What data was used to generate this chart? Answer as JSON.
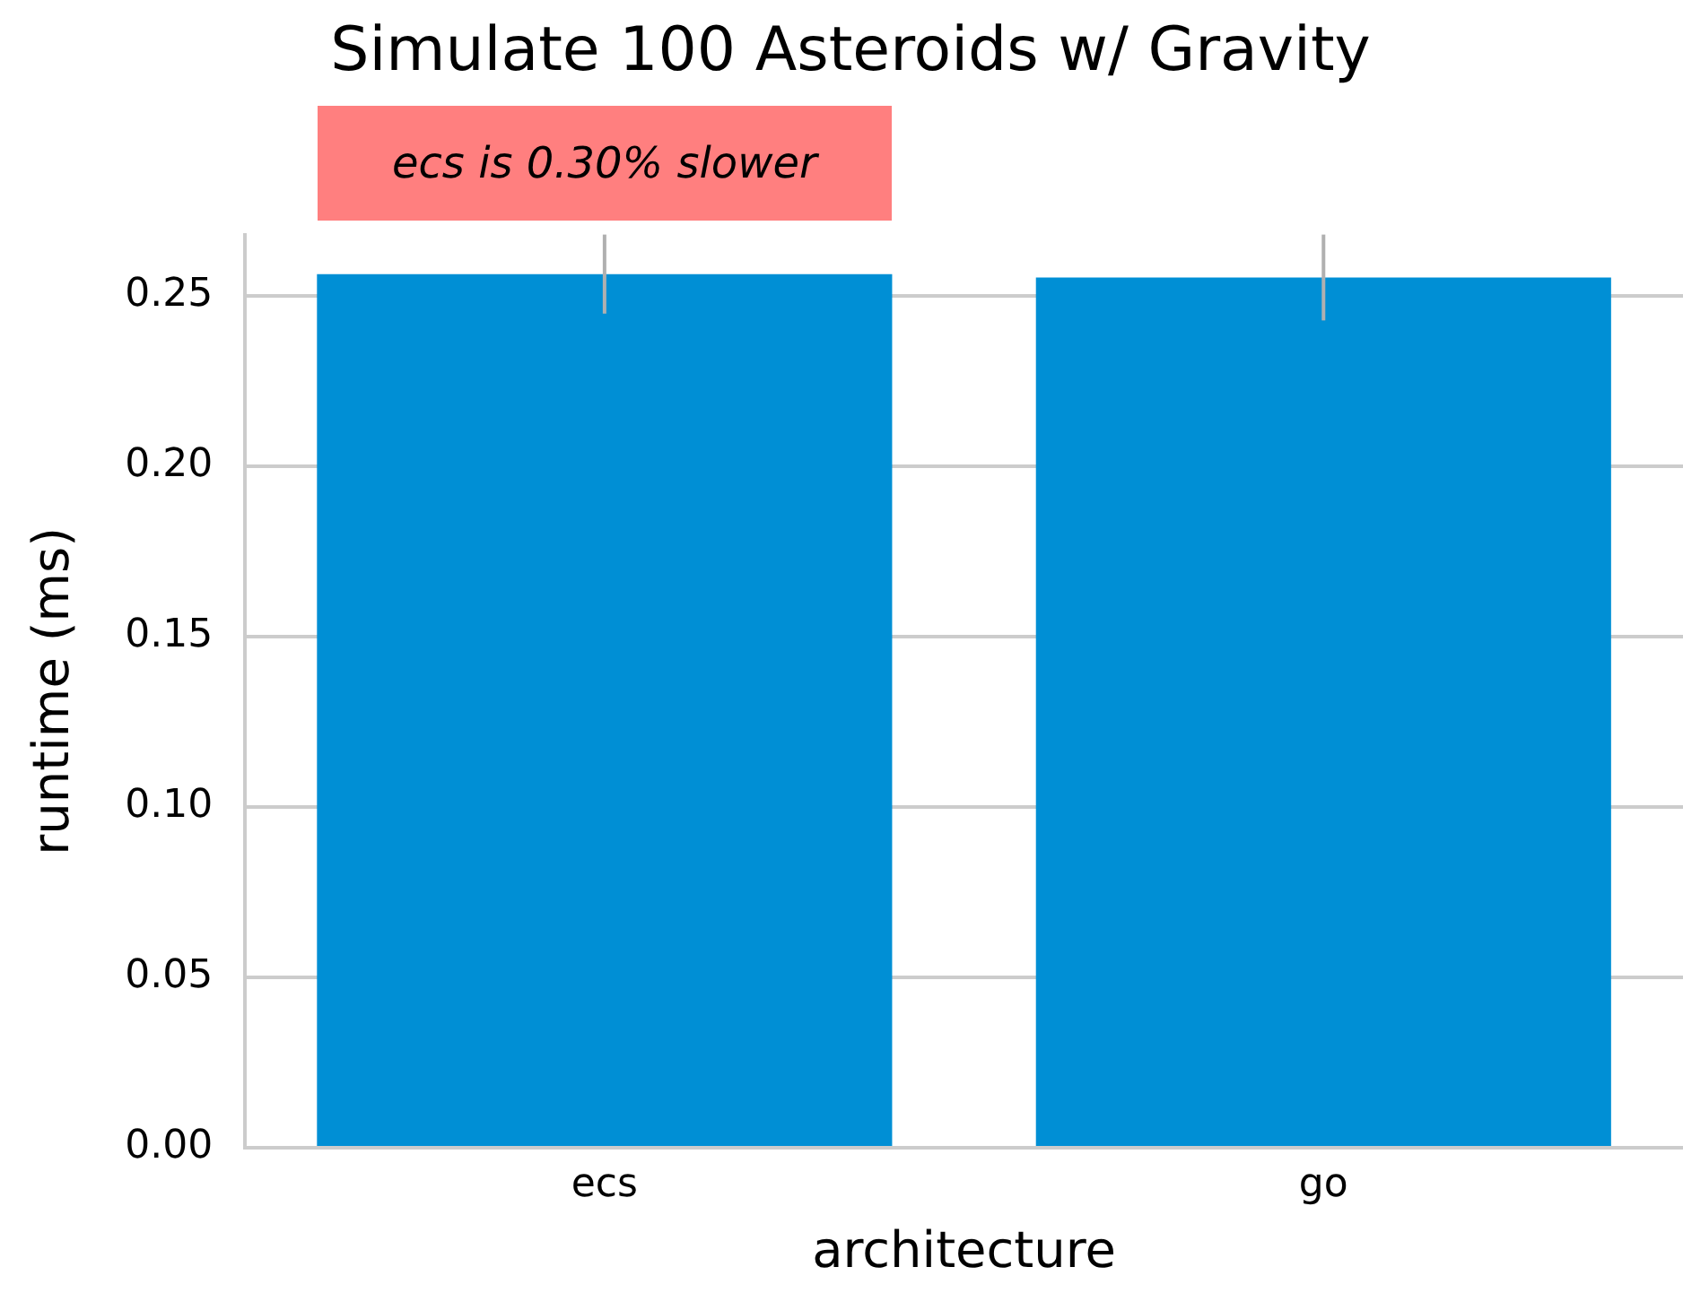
{
  "chart_data": {
    "type": "bar",
    "title": "Simulate 100 Asteroids w/ Gravity",
    "xlabel": "architecture",
    "ylabel": "runtime (ms)",
    "categories": [
      "ecs",
      "go"
    ],
    "values": [
      0.2564,
      0.2554
    ],
    "color": "#008fd5",
    "errors": [
      0.0116,
      0.0126
    ],
    "ylim": [
      0,
      0.268
    ],
    "yticks": [
      {
        "value": 0,
        "label": "0.00"
      },
      {
        "value": 0.05,
        "label": "0.05"
      },
      {
        "value": 0.1,
        "label": "0.10"
      },
      {
        "value": 0.15,
        "label": "0.15"
      },
      {
        "value": 0.2,
        "label": "0.20"
      },
      {
        "value": 0.25,
        "label": "0.25"
      }
    ],
    "grid": "y",
    "legend": false,
    "annotations": [
      "ecs is 0.30% slower"
    ]
  }
}
